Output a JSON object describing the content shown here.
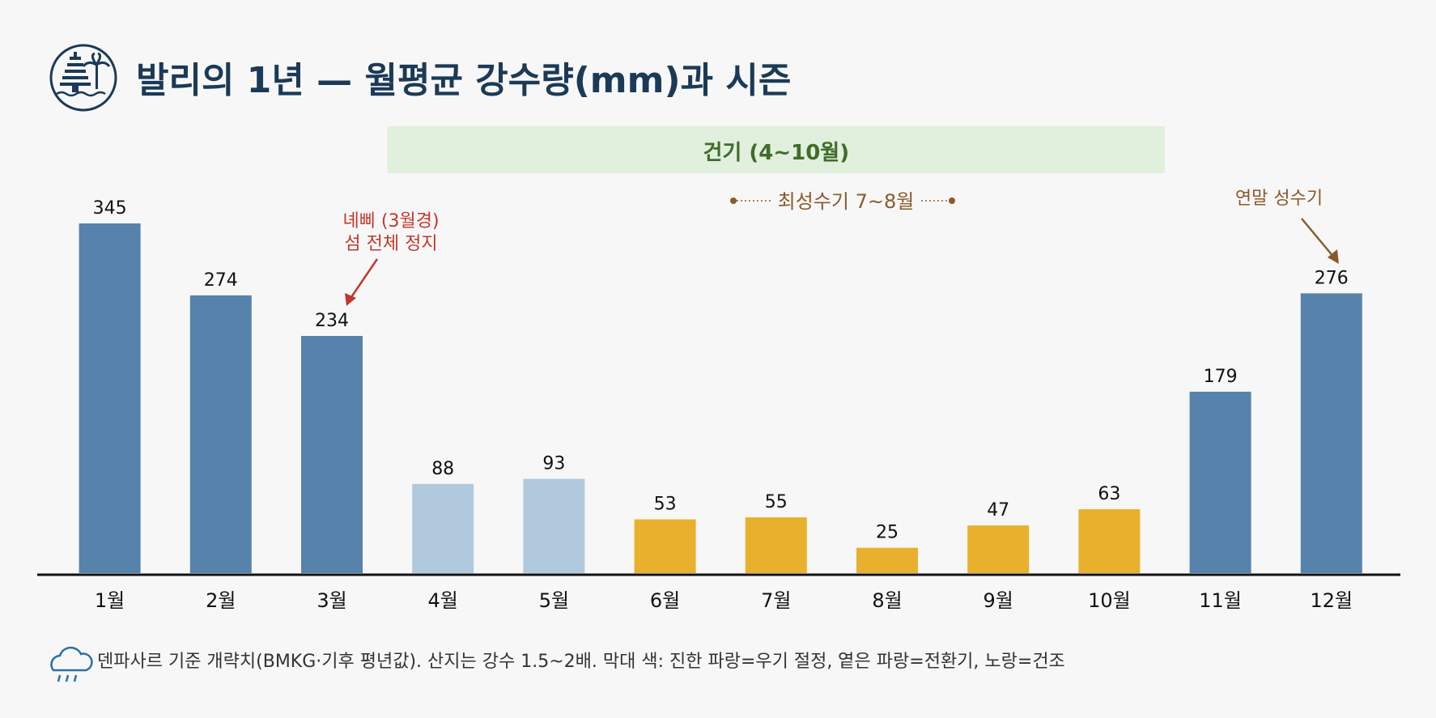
{
  "header": {
    "title": "발리의 1년 — 월평균 강수량(mm)과 시즌",
    "logo_icon": "pagoda-palm-icon"
  },
  "season_band": {
    "label": "건기 (4~10월)",
    "start_month_index": 3,
    "end_month_index": 9,
    "fill": "#e1efdd",
    "text_color": "#3f6d2a"
  },
  "peak_marker": {
    "label": "최성수기 7~8월",
    "color": "#8a5a2b"
  },
  "annotations": {
    "nyepi_line1": "녜삐 (3월경)",
    "nyepi_line2": "섬 전체 정지",
    "nyepi_color": "#c0392b",
    "year_end": "연말 성수기",
    "year_end_color": "#8a5a2b"
  },
  "footer": {
    "icon": "rain-cloud-icon",
    "note": "덴파사르 기준 개략치(BMKG·기후 평년값). 산지는 강수 1.5~2배. 막대 색: 진한 파랑=우기 절정, 옅은 파랑=전환기, 노랑=건조"
  },
  "colors": {
    "wet": "#5782ab",
    "transition": "#b0c9dc",
    "dry": "#e9b02d",
    "title": "#1b3a57",
    "axis": "#111111"
  },
  "chart_data": {
    "type": "bar",
    "title": "발리의 1년 — 월평균 강수량(mm)과 시즌",
    "categories": [
      "1월",
      "2월",
      "3월",
      "4월",
      "5월",
      "6월",
      "7월",
      "8월",
      "9월",
      "10월",
      "11월",
      "12월"
    ],
    "values": [
      345,
      274,
      234,
      88,
      93,
      53,
      55,
      25,
      47,
      63,
      179,
      276
    ],
    "value_labels": [
      "345",
      "274",
      "234",
      "88",
      "93",
      "53",
      "55",
      "25",
      "47",
      "63",
      "179",
      "276"
    ],
    "bar_classes": [
      "wet",
      "wet",
      "wet",
      "transition",
      "transition",
      "dry",
      "dry",
      "dry",
      "dry",
      "dry",
      "wet",
      "wet"
    ],
    "ylim": [
      0,
      345
    ],
    "grid": false,
    "legend": "none"
  }
}
